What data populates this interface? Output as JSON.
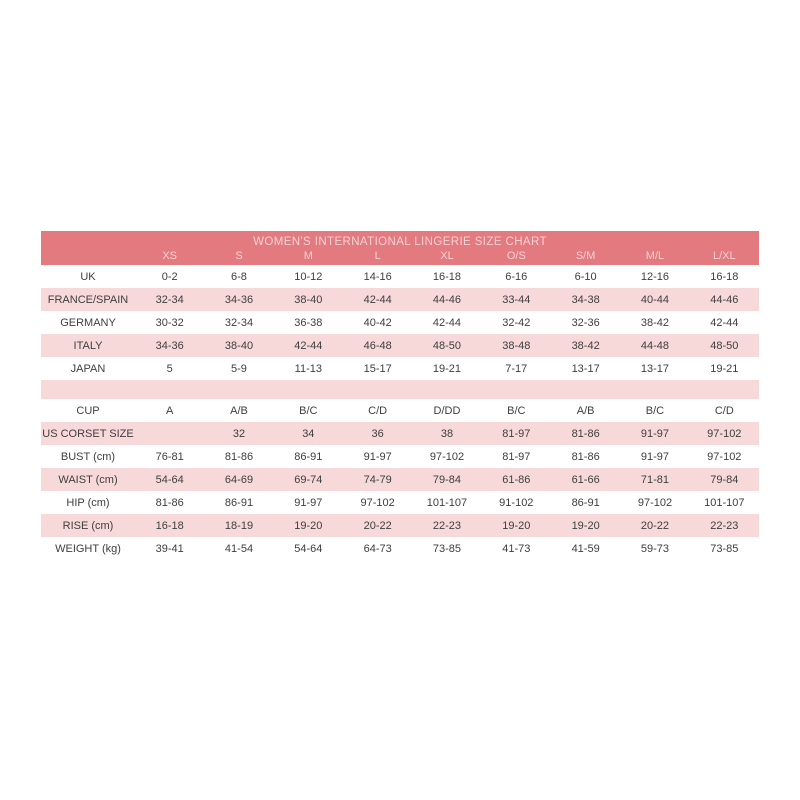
{
  "chart_data": {
    "type": "table",
    "title": "WOMEN'S INTERNATIONAL LINGERIE SIZE CHART",
    "columns": [
      "",
      "XS",
      "S",
      "M",
      "L",
      "XL",
      "O/S",
      "S/M",
      "M/L",
      "L/XL"
    ],
    "rows": [
      {
        "label": "UK",
        "values": [
          "0-2",
          "6-8",
          "10-12",
          "14-16",
          "16-18",
          "6-16",
          "6-10",
          "12-16",
          "16-18"
        ]
      },
      {
        "label": "FRANCE/SPAIN",
        "values": [
          "32-34",
          "34-36",
          "38-40",
          "42-44",
          "44-46",
          "33-44",
          "34-38",
          "40-44",
          "44-46"
        ]
      },
      {
        "label": "GERMANY",
        "values": [
          "30-32",
          "32-34",
          "36-38",
          "40-42",
          "42-44",
          "32-42",
          "32-36",
          "38-42",
          "42-44"
        ]
      },
      {
        "label": "ITALY",
        "values": [
          "34-36",
          "38-40",
          "42-44",
          "46-48",
          "48-50",
          "38-48",
          "38-42",
          "44-48",
          "48-50"
        ]
      },
      {
        "label": "JAPAN",
        "values": [
          "5",
          "5-9",
          "11-13",
          "15-17",
          "19-21",
          "7-17",
          "13-17",
          "13-17",
          "19-21"
        ]
      },
      {
        "label": "",
        "values": [
          "",
          "",
          "",
          "",
          "",
          "",
          "",
          "",
          ""
        ],
        "separator": true
      },
      {
        "label": "CUP",
        "values": [
          "A",
          "A/B",
          "B/C",
          "C/D",
          "D/DD",
          "B/C",
          "A/B",
          "B/C",
          "C/D"
        ]
      },
      {
        "label": "US CORSET SIZE",
        "values": [
          "",
          "32",
          "34",
          "36",
          "38",
          "81-97",
          "81-86",
          "91-97",
          "97-102"
        ]
      },
      {
        "label": "BUST (cm)",
        "values": [
          "76-81",
          "81-86",
          "86-91",
          "91-97",
          "97-102",
          "81-97",
          "81-86",
          "91-97",
          "97-102"
        ]
      },
      {
        "label": "WAIST (cm)",
        "values": [
          "54-64",
          "64-69",
          "69-74",
          "74-79",
          "79-84",
          "61-86",
          "61-66",
          "71-81",
          "79-84"
        ]
      },
      {
        "label": "HIP (cm)",
        "values": [
          "81-86",
          "86-91",
          "91-97",
          "97-102",
          "101-107",
          "91-102",
          "86-91",
          "97-102",
          "101-107"
        ]
      },
      {
        "label": "RISE (cm)",
        "values": [
          "16-18",
          "18-19",
          "19-20",
          "20-22",
          "22-23",
          "19-20",
          "19-20",
          "20-22",
          "22-23"
        ]
      },
      {
        "label": "WEIGHT (kg)",
        "values": [
          "39-41",
          "41-54",
          "54-64",
          "64-73",
          "73-85",
          "41-73",
          "41-59",
          "59-73",
          "73-85"
        ]
      }
    ],
    "layout": {
      "legend": "none",
      "grid": false,
      "striped_rows": true
    },
    "colors": {
      "page_bg": "#ffffff",
      "header_bg": "#e37a80",
      "header_text": "#f6d2d4",
      "stripe_bg": "#f8d9da",
      "row_bg": "#ffffff",
      "body_text": "#3e3e3e"
    }
  }
}
